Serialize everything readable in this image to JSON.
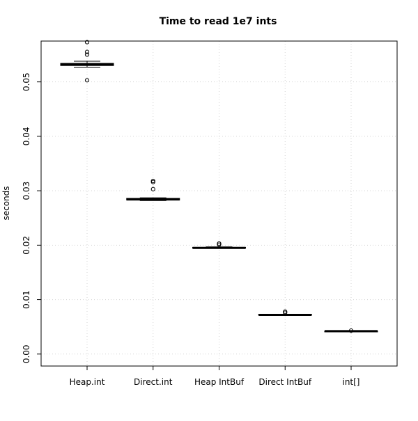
{
  "chart_data": {
    "type": "box",
    "title": "Time to read 1e7 ints",
    "xlabel": "",
    "ylabel": "seconds",
    "ylim": [
      -0.0022,
      0.0575
    ],
    "grid": true,
    "categories": [
      "Heap.int",
      "Direct.int",
      "Heap IntBuf",
      "Direct IntBuf",
      "int[]"
    ],
    "y_ticks": [
      0.0,
      0.01,
      0.02,
      0.03,
      0.04,
      0.05
    ],
    "y_tick_labels": [
      "0.00",
      "0.01",
      "0.02",
      "0.03",
      "0.04",
      "0.05"
    ],
    "boxes": [
      {
        "name": "Heap.int",
        "whisker_low": 0.0527,
        "q1": 0.053,
        "median": 0.0532,
        "q3": 0.0534,
        "whisker_high": 0.0538,
        "outliers": [
          0.0573,
          0.0555,
          0.055,
          0.0503
        ]
      },
      {
        "name": "Direct.int",
        "whisker_low": 0.0282,
        "q1": 0.0283,
        "median": 0.0284,
        "q3": 0.0286,
        "whisker_high": 0.0287,
        "outliers": [
          0.0318,
          0.0316,
          0.0303
        ]
      },
      {
        "name": "Heap IntBuf",
        "whisker_low": 0.0194,
        "q1": 0.0195,
        "median": 0.0195,
        "q3": 0.0196,
        "whisker_high": 0.0197,
        "outliers": [
          0.0203,
          0.0201
        ]
      },
      {
        "name": "Direct IntBuf",
        "whisker_low": 0.0071,
        "q1": 0.0072,
        "median": 0.0072,
        "q3": 0.0073,
        "whisker_high": 0.0073,
        "outliers": [
          0.0078,
          0.0076
        ]
      },
      {
        "name": "int[]",
        "whisker_low": 0.0041,
        "q1": 0.0042,
        "median": 0.0042,
        "q3": 0.0042,
        "whisker_high": 0.0043,
        "outliers": [
          0.0043
        ]
      }
    ]
  }
}
